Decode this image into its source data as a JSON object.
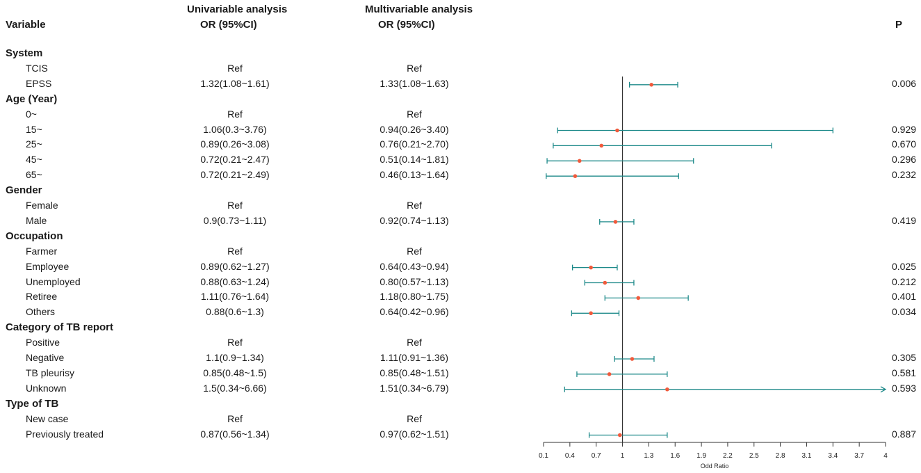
{
  "headers": {
    "variable": "Variable",
    "uni_line1": "Univariable analysis",
    "uni_line2": "OR (95%CI)",
    "multi_line1": "Multivariable analysis",
    "multi_line2": "OR (95%CI)",
    "p": "P"
  },
  "groups": [
    {
      "title": "System",
      "rows": [
        {
          "label": "TCIS",
          "uni": "Ref",
          "multi": "Ref",
          "p": ""
        },
        {
          "label": "EPSS",
          "uni": "1.32(1.08~1.61)",
          "multi": "1.33(1.08~1.63)",
          "p": "0.006"
        }
      ]
    },
    {
      "title": "Age (Year)",
      "rows": [
        {
          "label": "0~",
          "uni": "Ref",
          "multi": "Ref",
          "p": ""
        },
        {
          "label": "15~",
          "uni": "1.06(0.3~3.76)",
          "multi": "0.94(0.26~3.40)",
          "p": "0.929"
        },
        {
          "label": "25~",
          "uni": "0.89(0.26~3.08)",
          "multi": "0.76(0.21~2.70)",
          "p": "0.670"
        },
        {
          "label": "45~",
          "uni": "0.72(0.21~2.47)",
          "multi": "0.51(0.14~1.81)",
          "p": "0.296"
        },
        {
          "label": "65~",
          "uni": "0.72(0.21~2.49)",
          "multi": "0.46(0.13~1.64)",
          "p": "0.232"
        }
      ]
    },
    {
      "title": "Gender",
      "rows": [
        {
          "label": "Female",
          "uni": "Ref",
          "multi": "Ref",
          "p": ""
        },
        {
          "label": "Male",
          "uni": "0.9(0.73~1.11)",
          "multi": "0.92(0.74~1.13)",
          "p": "0.419"
        }
      ]
    },
    {
      "title": "Occupation",
      "rows": [
        {
          "label": "Farmer",
          "uni": "Ref",
          "multi": "Ref",
          "p": ""
        },
        {
          "label": "Employee",
          "uni": "0.89(0.62~1.27)",
          "multi": "0.64(0.43~0.94)",
          "p": "0.025"
        },
        {
          "label": "Unemployed",
          "uni": "0.88(0.63~1.24)",
          "multi": "0.80(0.57~1.13)",
          "p": "0.212"
        },
        {
          "label": "Retiree",
          "uni": "1.11(0.76~1.64)",
          "multi": "1.18(0.80~1.75)",
          "p": "0.401"
        },
        {
          "label": "Others",
          "uni": "0.88(0.6~1.3)",
          "multi": "0.64(0.42~0.96)",
          "p": "0.034"
        }
      ]
    },
    {
      "title": "Category of TB report",
      "rows": [
        {
          "label": "Positive",
          "uni": "Ref",
          "multi": "Ref",
          "p": ""
        },
        {
          "label": "Negative",
          "uni": "1.1(0.9~1.34)",
          "multi": "1.11(0.91~1.36)",
          "p": "0.305"
        },
        {
          "label": "TB pleurisy",
          "uni": "0.85(0.48~1.5)",
          "multi": "0.85(0.48~1.51)",
          "p": "0.581"
        },
        {
          "label": "Unknown",
          "uni": "1.5(0.34~6.66)",
          "multi": "1.51(0.34~6.79)",
          "p": "0.593"
        }
      ]
    },
    {
      "title": "Type of TB",
      "rows": [
        {
          "label": "New case",
          "uni": "Ref",
          "multi": "Ref",
          "p": ""
        },
        {
          "label": "Previously treated",
          "uni": "0.87(0.56~1.34)",
          "multi": "0.97(0.62~1.51)",
          "p": "0.887"
        }
      ]
    }
  ],
  "chart_data": {
    "type": "forest",
    "xlabel": "Odd Ratio",
    "xlim": [
      0.1,
      4
    ],
    "reference_line": 1,
    "ticks": [
      "0.1",
      "0.4",
      "0.7",
      "1",
      "1.3",
      "1.6",
      "1.9",
      "2.2",
      "2.5",
      "2.8",
      "3.1",
      "3.4",
      "3.7",
      "4"
    ],
    "ci_color": "#1e8a8a",
    "point_color": "#f05a3c",
    "points": [
      {
        "label": "EPSS",
        "or": 1.33,
        "lo": 1.08,
        "hi": 1.63,
        "arrow": false
      },
      {
        "label": "15~",
        "or": 0.94,
        "lo": 0.26,
        "hi": 3.4,
        "arrow": false
      },
      {
        "label": "25~",
        "or": 0.76,
        "lo": 0.21,
        "hi": 2.7,
        "arrow": false
      },
      {
        "label": "45~",
        "or": 0.51,
        "lo": 0.14,
        "hi": 1.81,
        "arrow": false
      },
      {
        "label": "65~",
        "or": 0.46,
        "lo": 0.13,
        "hi": 1.64,
        "arrow": false
      },
      {
        "label": "Male",
        "or": 0.92,
        "lo": 0.74,
        "hi": 1.13,
        "arrow": false
      },
      {
        "label": "Employee",
        "or": 0.64,
        "lo": 0.43,
        "hi": 0.94,
        "arrow": false
      },
      {
        "label": "Unemployed",
        "or": 0.8,
        "lo": 0.57,
        "hi": 1.13,
        "arrow": false
      },
      {
        "label": "Retiree",
        "or": 1.18,
        "lo": 0.8,
        "hi": 1.75,
        "arrow": false
      },
      {
        "label": "Others",
        "or": 0.64,
        "lo": 0.42,
        "hi": 0.96,
        "arrow": false
      },
      {
        "label": "Negative",
        "or": 1.11,
        "lo": 0.91,
        "hi": 1.36,
        "arrow": false
      },
      {
        "label": "TB pleurisy",
        "or": 0.85,
        "lo": 0.48,
        "hi": 1.51,
        "arrow": false
      },
      {
        "label": "Unknown",
        "or": 1.51,
        "lo": 0.34,
        "hi": 6.79,
        "arrow": true
      },
      {
        "label": "Previously treated",
        "or": 0.97,
        "lo": 0.62,
        "hi": 1.51,
        "arrow": false
      }
    ]
  }
}
